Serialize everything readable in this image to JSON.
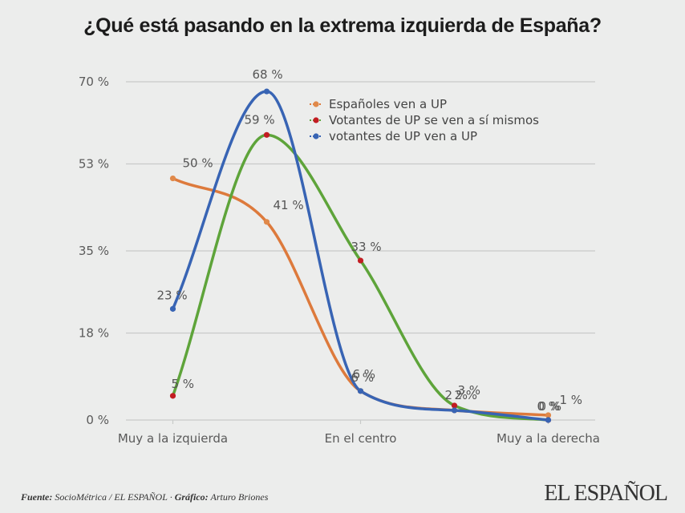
{
  "title": "¿Qué está pasando en la extrema izquierda de España?",
  "footer": {
    "source_label": "Fuente:",
    "source_text": "SocioMétrica / EL ESPAÑOL",
    "separator": "·",
    "graphic_label": "Gráfico:",
    "graphic_text": "Arturo Briones"
  },
  "brand": {
    "logo_text": "EL ESPAÑOL"
  },
  "chart_data": {
    "type": "line",
    "title": "¿Qué está pasando en la extrema izquierda de España?",
    "xlabel": "",
    "ylabel": "",
    "x_positions": [
      1,
      2,
      3,
      4,
      5
    ],
    "x_range": [
      0.5,
      5.5
    ],
    "x_tick_labels": [
      {
        "x": 1,
        "label": "Muy a la izquierda"
      },
      {
        "x": 3,
        "label": "En el centro"
      },
      {
        "x": 5,
        "label": "Muy a la derecha"
      }
    ],
    "ylim": [
      0,
      70
    ],
    "y_ticks": [
      0,
      18,
      35,
      53,
      70
    ],
    "y_tick_labels": [
      "0 %",
      "18 %",
      "35 %",
      "53 %",
      "70 %"
    ],
    "grid": true,
    "legend_position": "top-right",
    "series": [
      {
        "name": "Españoles ven a UP",
        "color": "#dd7a3c",
        "marker_color": "#e0894a",
        "values": [
          50,
          41,
          6,
          2,
          1
        ],
        "labels": [
          "50 %",
          "41 %",
          "6 %",
          "2 %",
          "1 %"
        ]
      },
      {
        "name": "Votantes de UP  se ven a sí mismos",
        "color": "#5ea43a",
        "marker_color": "#c21d22",
        "values": [
          5,
          59,
          33,
          3,
          0
        ],
        "labels": [
          "5 %",
          "59 %",
          "33 %",
          "3 %",
          "0 %"
        ]
      },
      {
        "name": "votantes de UP  ven a UP",
        "color": "#3864b4",
        "marker_color": "#3864b4",
        "values": [
          23,
          68,
          6,
          2,
          0
        ],
        "labels": [
          "23 %",
          "68 %",
          "6 %",
          "2 %",
          "0 %"
        ]
      }
    ],
    "legend_entries": [
      "Españoles ven a UP",
      "Votantes de UP  se ven a sí mismos",
      "votantes de UP  ven a UP"
    ]
  },
  "colors": {
    "background": "#ecedec",
    "grid": "#c8cac9",
    "axis_text": "#5a5a5a"
  }
}
